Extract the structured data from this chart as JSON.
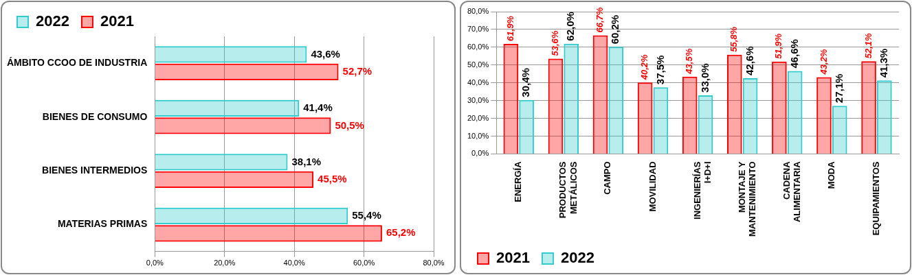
{
  "chart_data": [
    {
      "type": "bar",
      "orientation": "horizontal",
      "categories": [
        "ÁMBITO CCOO DE INDUSTRIA",
        "BIENES DE CONSUMO",
        "BIENES INTERMEDIOS",
        "MATERIAS PRIMAS"
      ],
      "series": [
        {
          "name": "2022",
          "color": "#33cccc",
          "values": [
            43.6,
            41.4,
            38.1,
            55.4
          ],
          "value_labels": [
            "43,6%",
            "41,4%",
            "38,1%",
            "55,4%"
          ]
        },
        {
          "name": "2021",
          "color": "#ff0000",
          "values": [
            52.7,
            50.5,
            45.5,
            65.2
          ],
          "value_labels": [
            "52,7%",
            "50,5%",
            "45,5%",
            "65,2%"
          ]
        }
      ],
      "xlim": [
        0,
        80
      ],
      "xticks": [
        {
          "value": 0,
          "label": "0,0%"
        },
        {
          "value": 20,
          "label": "20,0%"
        },
        {
          "value": 40,
          "label": "40,0%"
        },
        {
          "value": 60,
          "label": "60,0%"
        },
        {
          "value": 80,
          "label": "80,0%"
        }
      ],
      "grid": "x",
      "legend": "top left"
    },
    {
      "type": "bar",
      "categories": [
        "ENERGÍA",
        "PRODUCTOS\nMETÁLICOS",
        "CAMPO",
        "MOVILIDAD",
        "INGENIERÍAS\nI+D+I",
        "MONTAJE Y\nMANTENIMIENTO",
        "CADENA\nALIMENTARIA",
        "MODA",
        "EQUIPAMIENTOS"
      ],
      "series": [
        {
          "name": "2021",
          "color": "#ff0000",
          "values": [
            61.9,
            53.6,
            66.7,
            40.2,
            43.5,
            55.8,
            51.9,
            43.2,
            52.1
          ],
          "value_labels": [
            "61,9%",
            "53,6%",
            "66,7%",
            "40,2%",
            "43,5%",
            "55,8%",
            "51,9%",
            "43,2%",
            "52,1%"
          ]
        },
        {
          "name": "2022",
          "color": "#33cccc",
          "values": [
            30.4,
            62.0,
            60.2,
            37.5,
            33.0,
            42.6,
            46.6,
            27.1,
            41.3
          ],
          "value_labels": [
            "30,4%",
            "62,0%",
            "60,2%",
            "37,5%",
            "33,0%",
            "42,6%",
            "46,6%",
            "27,1%",
            "41,3%"
          ]
        }
      ],
      "ylim": [
        0,
        80
      ],
      "yticks": [
        {
          "value": 0,
          "label": "0,0%"
        },
        {
          "value": 10,
          "label": "10,0%"
        },
        {
          "value": 20,
          "label": "20,0%"
        },
        {
          "value": 30,
          "label": "30,0%"
        },
        {
          "value": 40,
          "label": "40,0%"
        },
        {
          "value": 50,
          "label": "50,0%"
        },
        {
          "value": 60,
          "label": "60,0%"
        },
        {
          "value": 70,
          "label": "70,0%"
        },
        {
          "value": 80,
          "label": "80,0%"
        }
      ],
      "grid": "y",
      "legend": "bottom left"
    }
  ]
}
